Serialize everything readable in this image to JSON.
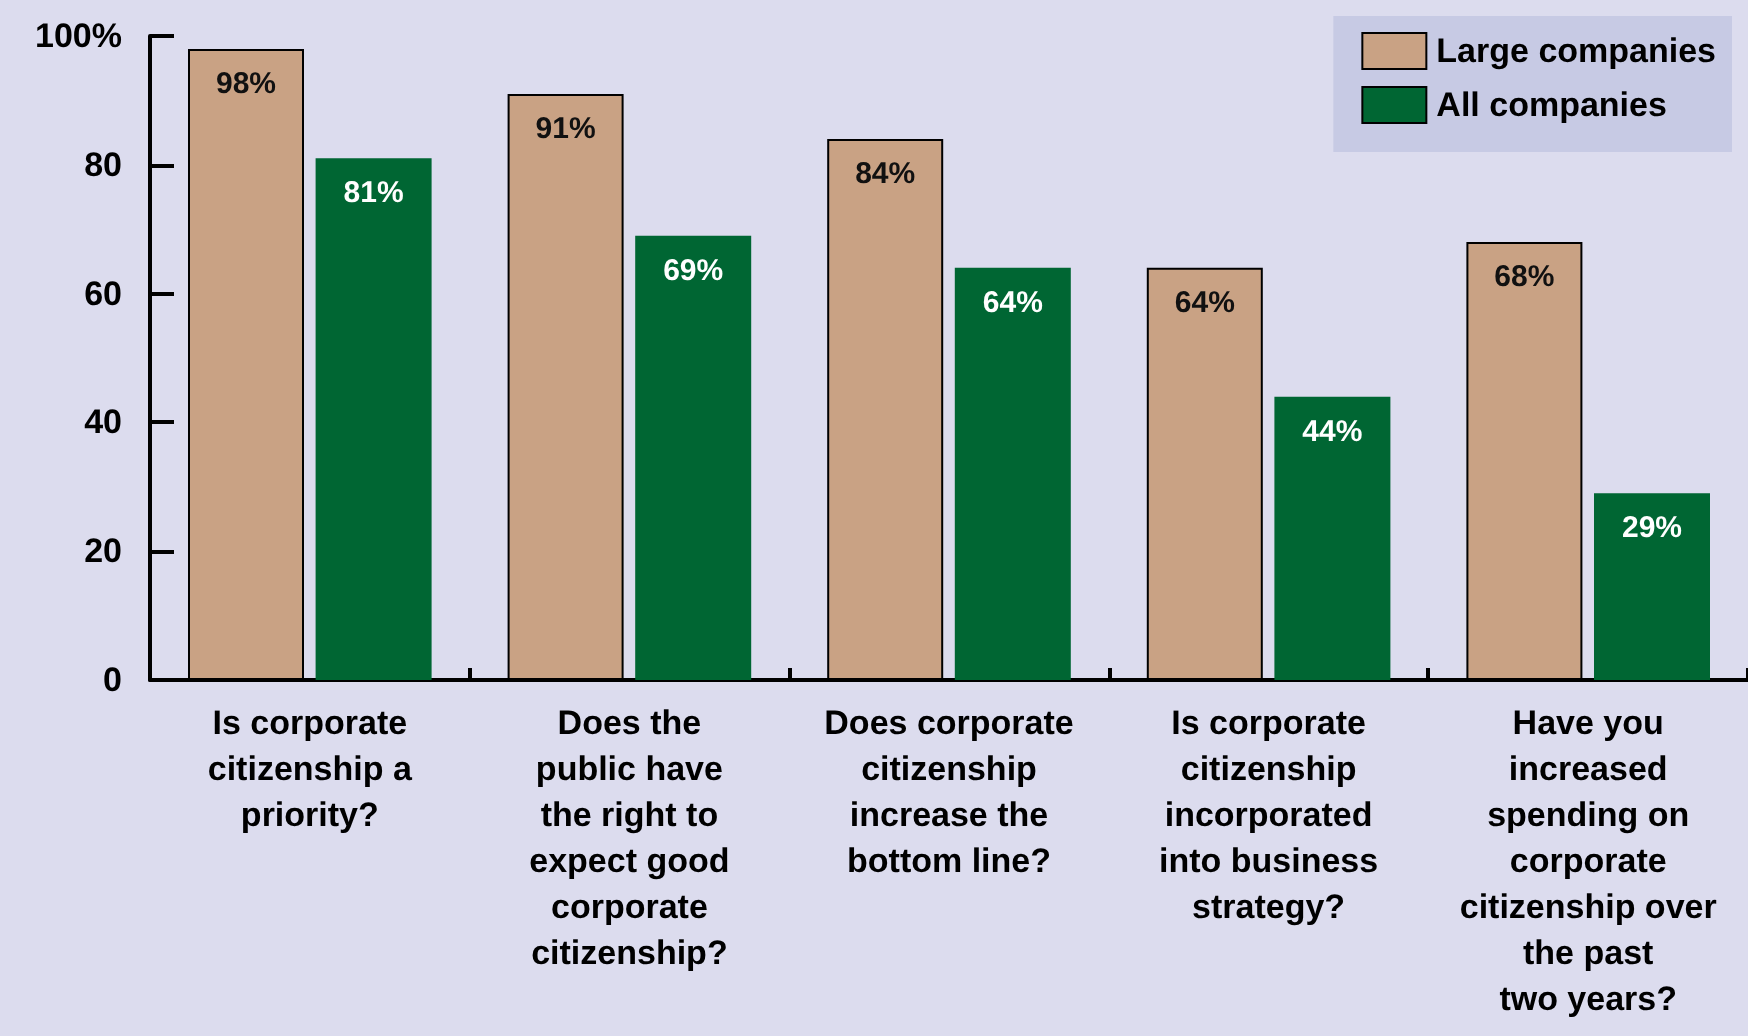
{
  "chart_data": {
    "type": "bar",
    "categories": [
      "Is corporate\ncitizenship a\npriority?",
      "Does the\npublic have\nthe right to\nexpect good\ncorporate\ncitizenship?",
      "Does corporate\ncitizenship\nincrease the\nbottom line?",
      "Is corporate\ncitizenship\nincorporated\ninto business\nstrategy?",
      "Have you\nincreased\nspending on\ncorporate\ncitizenship over\nthe past\ntwo years?"
    ],
    "series": [
      {
        "name": "Large companies",
        "color": "#c9a284",
        "values": [
          98,
          91,
          84,
          64,
          68
        ],
        "value_labels": [
          "98%",
          "91%",
          "84%",
          "64%",
          "68%"
        ]
      },
      {
        "name": "All companies",
        "color": "#006633",
        "values": [
          81,
          69,
          64,
          44,
          29
        ],
        "value_labels": [
          "81%",
          "69%",
          "64%",
          "44%",
          "29%"
        ]
      }
    ],
    "ylim": [
      0,
      100
    ],
    "yticks": [
      0,
      20,
      40,
      60,
      80,
      {
        "value": 100,
        "label": "100%"
      }
    ],
    "grid": false,
    "legend": "top right"
  }
}
